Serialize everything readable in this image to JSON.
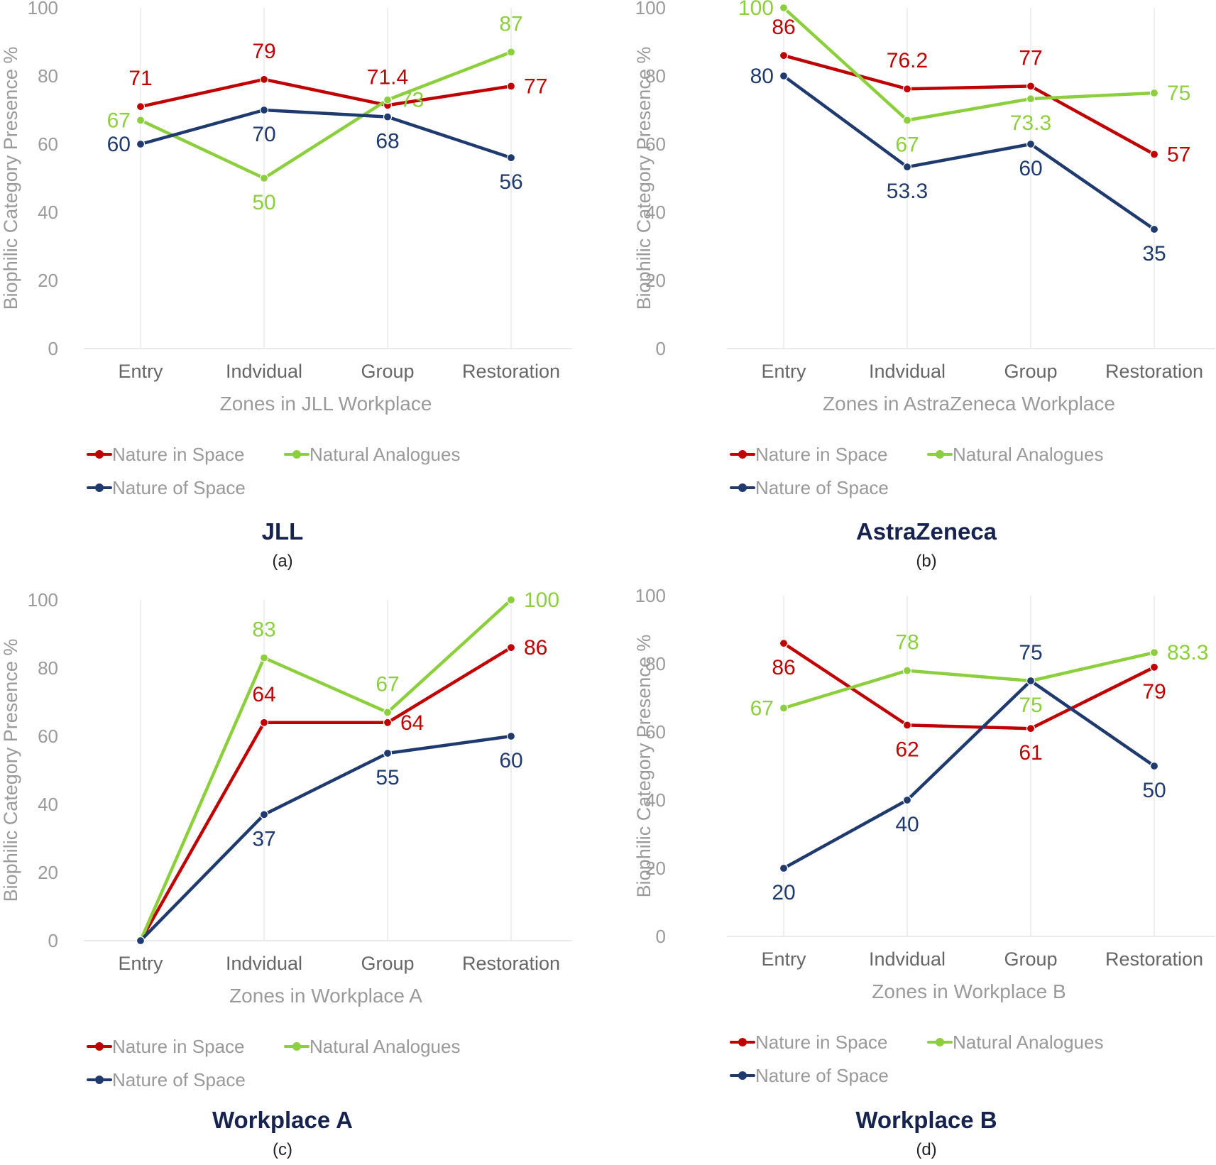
{
  "colors": {
    "nature_in_space": "#c00000",
    "natural_analogues": "#8ccf3c",
    "nature_of_space": "#1f3a6e",
    "axis_text": "#9a9a9a",
    "grid": "#e3e3e3",
    "title_text": "#17234f"
  },
  "legend": {
    "nature_in_space": "Nature in Space",
    "natural_analogues": "Natural Analogues",
    "nature_of_space": "Nature of Space"
  },
  "chart_data": [
    {
      "type": "line",
      "panel_title": "JLL",
      "panel_label": "(a)",
      "xlabel": "Zones in JLL Workplace",
      "ylabel": "Biophilic Category Presence %",
      "categories": [
        "Entry",
        "Indvidual",
        "Group",
        "Restoration"
      ],
      "ylim": [
        0,
        100
      ],
      "yticks": [
        0,
        20,
        40,
        60,
        80,
        100
      ],
      "grid": "vertical",
      "legend_position": "bottom",
      "series": [
        {
          "name": "Nature in Space",
          "key": "nature_in_space",
          "values": [
            71,
            79,
            71.4,
            77
          ],
          "labels": [
            "71",
            "79",
            "71.4",
            "77"
          ]
        },
        {
          "name": "Natural Analogues",
          "key": "natural_analogues",
          "values": [
            67,
            50,
            73,
            87
          ],
          "labels": [
            "67",
            "50",
            "73",
            "87"
          ]
        },
        {
          "name": "Nature of Space",
          "key": "nature_of_space",
          "values": [
            60,
            70,
            68,
            56
          ],
          "labels": [
            "60",
            "70",
            "68",
            "56"
          ]
        }
      ]
    },
    {
      "type": "line",
      "panel_title": "AstraZeneca",
      "panel_label": "(b)",
      "xlabel": "Zones in AstraZeneca Workplace",
      "ylabel": "Biophilic Category Presence %",
      "categories": [
        "Entry",
        "Indvidual",
        "Group",
        "Restoration"
      ],
      "ylim": [
        0,
        100
      ],
      "yticks": [
        0,
        20,
        40,
        60,
        80,
        100
      ],
      "grid": "vertical",
      "legend_position": "bottom",
      "series": [
        {
          "name": "Nature in Space",
          "key": "nature_in_space",
          "values": [
            86,
            76.2,
            77,
            57
          ],
          "labels": [
            "86",
            "76.2",
            "77",
            "57"
          ]
        },
        {
          "name": "Natural Analogues",
          "key": "natural_analogues",
          "values": [
            100,
            67,
            73.3,
            75
          ],
          "labels": [
            "100",
            "67",
            "73.3",
            "75"
          ]
        },
        {
          "name": "Nature of Space",
          "key": "nature_of_space",
          "values": [
            80,
            53.3,
            60,
            35
          ],
          "labels": [
            "80",
            "53.3",
            "60",
            "35"
          ]
        }
      ]
    },
    {
      "type": "line",
      "panel_title": "Workplace A",
      "panel_label": "(c)",
      "xlabel": "Zones in Workplace A",
      "ylabel": "Biophilic Category Presence %",
      "categories": [
        "Entry",
        "Indvidual",
        "Group",
        "Restoration"
      ],
      "ylim": [
        0,
        100
      ],
      "yticks": [
        0,
        20,
        40,
        60,
        80,
        100
      ],
      "grid": "vertical",
      "legend_position": "bottom",
      "series": [
        {
          "name": "Nature in Space",
          "key": "nature_in_space",
          "values": [
            0,
            64,
            64,
            86
          ],
          "labels": [
            "",
            "64",
            "64",
            "86"
          ]
        },
        {
          "name": "Natural Analogues",
          "key": "natural_analogues",
          "values": [
            0,
            83,
            67,
            100
          ],
          "labels": [
            "",
            "83",
            "67",
            "100"
          ]
        },
        {
          "name": "Nature of Space",
          "key": "nature_of_space",
          "values": [
            0,
            37,
            55,
            60
          ],
          "labels": [
            "",
            "37",
            "55",
            "60"
          ]
        }
      ]
    },
    {
      "type": "line",
      "panel_title": "Workplace B",
      "panel_label": "(d)",
      "xlabel": "Zones in Workplace B",
      "ylabel": "Biophilic Category Presence %",
      "categories": [
        "Entry",
        "Indvidual",
        "Group",
        "Restoration"
      ],
      "ylim": [
        0,
        100
      ],
      "yticks": [
        0,
        20,
        40,
        60,
        80,
        100
      ],
      "grid": "vertical",
      "legend_position": "bottom",
      "series": [
        {
          "name": "Nature in Space",
          "key": "nature_in_space",
          "values": [
            86,
            62,
            61,
            79
          ],
          "labels": [
            "86",
            "62",
            "61",
            "79"
          ]
        },
        {
          "name": "Natural Analogues",
          "key": "natural_analogues",
          "values": [
            67,
            78,
            75,
            83.3
          ],
          "labels": [
            "67",
            "78",
            "75",
            "83.3"
          ]
        },
        {
          "name": "Nature of Space",
          "key": "nature_of_space",
          "values": [
            20,
            40,
            75,
            50
          ],
          "labels": [
            "20",
            "40",
            "75",
            "50"
          ]
        }
      ]
    }
  ]
}
